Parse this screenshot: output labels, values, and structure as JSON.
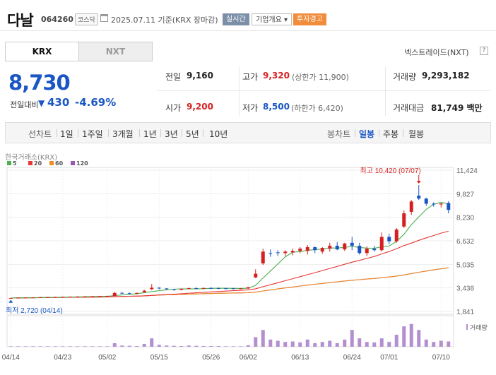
{
  "header": {
    "name": "다날",
    "code": "064260",
    "market": "코스닥",
    "date": "2025.07.11",
    "basis": "기준(KRX 장마감)",
    "realtime_label": "실시간",
    "overview_label": "기업개요",
    "overview_arrow": "▾",
    "warning_label": "투자경고"
  },
  "tabs": {
    "krx": "KRX",
    "nxt": "NXT"
  },
  "nxt_link": "넥스트레이드(NXT)",
  "help_icon": "?",
  "quote": {
    "price": "8,730",
    "change_label": "전일대비",
    "change_arrow": "▼",
    "change": "430",
    "change_pct": "-4.69%"
  },
  "stats": {
    "prev_label": "전일",
    "prev": "9,160",
    "high_label": "고가",
    "high": "9,320",
    "upper_limit": "(상한가 11,900)",
    "volume_label": "거래량",
    "volume": "9,293,182",
    "open_label": "시가",
    "open": "9,200",
    "low_label": "저가",
    "low": "8,500",
    "lower_limit": "(하한가 6,420)",
    "amount_label": "거래대금",
    "amount": "81,749 백만"
  },
  "colors": {
    "up": "#d62020",
    "down": "#1a56c4",
    "ma5": "#4caf50",
    "ma20": "#e53935",
    "ma60": "#f08c20",
    "ma120": "#9b59b6",
    "volume": "#b48fd0"
  },
  "periods": {
    "line_label": "선차트",
    "line": [
      "1일",
      "1주일",
      "3개월",
      "1년",
      "3년",
      "5년",
      "10년"
    ],
    "candle_label": "봉차트",
    "candle": [
      "일봉",
      "주봉",
      "월봉"
    ],
    "candle_selected": "일봉"
  },
  "chart_data": {
    "type": "candlestick",
    "source_label": "한국거래소(KRX)",
    "legend": [
      "5",
      "20",
      "60",
      "120"
    ],
    "y_ticks": [
      "11,424",
      "9,827",
      "8,230",
      "6,632",
      "5,035",
      "3,438",
      "1,841"
    ],
    "ylim": [
      1841,
      11424
    ],
    "x_ticks": [
      "04/14",
      "04/23",
      "05/02",
      "05/15",
      "05/26",
      "06/02",
      "06/13",
      "06/24",
      "07/01",
      "07/10"
    ],
    "high_annotation": "최고 10,420 (07/07)",
    "low_annotation": "최저 2,720 (04/14)",
    "volume_label": "거래량",
    "candles": [
      {
        "d": "04/14",
        "o": 2730,
        "h": 2760,
        "l": 2720,
        "c": 2750
      },
      {
        "d": "04/15",
        "o": 2750,
        "h": 2790,
        "l": 2740,
        "c": 2770
      },
      {
        "d": "04/16",
        "o": 2770,
        "h": 2800,
        "l": 2750,
        "c": 2780
      },
      {
        "d": "04/17",
        "o": 2780,
        "h": 2810,
        "l": 2760,
        "c": 2790
      },
      {
        "d": "04/18",
        "o": 2790,
        "h": 2820,
        "l": 2770,
        "c": 2800
      },
      {
        "d": "04/21",
        "o": 2800,
        "h": 2830,
        "l": 2780,
        "c": 2810
      },
      {
        "d": "04/22",
        "o": 2810,
        "h": 2840,
        "l": 2790,
        "c": 2820
      },
      {
        "d": "04/23",
        "o": 2820,
        "h": 2850,
        "l": 2800,
        "c": 2830
      },
      {
        "d": "04/24",
        "o": 2830,
        "h": 2860,
        "l": 2810,
        "c": 2840
      },
      {
        "d": "04/25",
        "o": 2840,
        "h": 2870,
        "l": 2820,
        "c": 2850
      },
      {
        "d": "04/28",
        "o": 2850,
        "h": 2880,
        "l": 2830,
        "c": 2860
      },
      {
        "d": "04/29",
        "o": 2860,
        "h": 2890,
        "l": 2840,
        "c": 2870
      },
      {
        "d": "04/30",
        "o": 2870,
        "h": 2900,
        "l": 2850,
        "c": 2880
      },
      {
        "d": "05/02",
        "o": 2880,
        "h": 2910,
        "l": 2860,
        "c": 2890
      },
      {
        "d": "05/07",
        "o": 2890,
        "h": 3150,
        "l": 2880,
        "c": 3100
      },
      {
        "d": "05/08",
        "o": 3100,
        "h": 3180,
        "l": 3050,
        "c": 3080
      },
      {
        "d": "05/09",
        "o": 3080,
        "h": 3130,
        "l": 3020,
        "c": 3050
      },
      {
        "d": "05/12",
        "o": 3050,
        "h": 3120,
        "l": 3000,
        "c": 3100
      },
      {
        "d": "05/13",
        "o": 3150,
        "h": 3300,
        "l": 3100,
        "c": 3250
      },
      {
        "d": "05/14",
        "o": 3350,
        "h": 3700,
        "l": 3300,
        "c": 3450
      },
      {
        "d": "05/15",
        "o": 3450,
        "h": 3480,
        "l": 3350,
        "c": 3400
      },
      {
        "d": "05/16",
        "o": 3400,
        "h": 3420,
        "l": 3300,
        "c": 3350
      },
      {
        "d": "05/19",
        "o": 3350,
        "h": 3380,
        "l": 3250,
        "c": 3300
      },
      {
        "d": "05/20",
        "o": 3300,
        "h": 3400,
        "l": 3280,
        "c": 3380
      },
      {
        "d": "05/21",
        "o": 3380,
        "h": 3450,
        "l": 3350,
        "c": 3420
      },
      {
        "d": "05/22",
        "o": 3420,
        "h": 3480,
        "l": 3380,
        "c": 3400
      },
      {
        "d": "05/23",
        "o": 3400,
        "h": 3460,
        "l": 3370,
        "c": 3430
      },
      {
        "d": "05/26",
        "o": 3430,
        "h": 3480,
        "l": 3380,
        "c": 3420
      },
      {
        "d": "05/27",
        "o": 3420,
        "h": 3460,
        "l": 3380,
        "c": 3410
      },
      {
        "d": "05/28",
        "o": 3410,
        "h": 3450,
        "l": 3370,
        "c": 3400
      },
      {
        "d": "05/29",
        "o": 3400,
        "h": 3440,
        "l": 3360,
        "c": 3390
      },
      {
        "d": "05/30",
        "o": 3390,
        "h": 3430,
        "l": 3350,
        "c": 3400
      },
      {
        "d": "06/02",
        "o": 3400,
        "h": 3500,
        "l": 3380,
        "c": 3480
      },
      {
        "d": "06/04",
        "o": 4150,
        "h": 4700,
        "l": 4100,
        "c": 4400
      },
      {
        "d": "06/05",
        "o": 5100,
        "h": 6100,
        "l": 5000,
        "c": 5900
      },
      {
        "d": "06/09",
        "o": 5800,
        "h": 6050,
        "l": 5550,
        "c": 5750
      },
      {
        "d": "06/10",
        "o": 5850,
        "h": 6000,
        "l": 5600,
        "c": 5800
      },
      {
        "d": "06/11",
        "o": 5800,
        "h": 6000,
        "l": 5600,
        "c": 5900
      },
      {
        "d": "06/12",
        "o": 5850,
        "h": 6100,
        "l": 5650,
        "c": 5950
      },
      {
        "d": "06/13",
        "o": 5950,
        "h": 6200,
        "l": 5800,
        "c": 6100
      },
      {
        "d": "06/16",
        "o": 5950,
        "h": 6350,
        "l": 5700,
        "c": 6200
      },
      {
        "d": "06/17",
        "o": 6200,
        "h": 6250,
        "l": 5800,
        "c": 6000
      },
      {
        "d": "06/18",
        "o": 5900,
        "h": 6200,
        "l": 5750,
        "c": 6150
      },
      {
        "d": "06/19",
        "o": 6100,
        "h": 6500,
        "l": 5900,
        "c": 6300
      },
      {
        "d": "06/20",
        "o": 6300,
        "h": 6550,
        "l": 6000,
        "c": 6050
      },
      {
        "d": "06/23",
        "o": 6050,
        "h": 6500,
        "l": 5950,
        "c": 6450
      },
      {
        "d": "06/24",
        "o": 6500,
        "h": 6900,
        "l": 6000,
        "c": 6300
      },
      {
        "d": "06/25",
        "o": 6300,
        "h": 6500,
        "l": 5700,
        "c": 5800
      },
      {
        "d": "06/26",
        "o": 5800,
        "h": 6250,
        "l": 5600,
        "c": 6100
      },
      {
        "d": "06/27",
        "o": 6100,
        "h": 6300,
        "l": 5900,
        "c": 6000
      },
      {
        "d": "06/30",
        "o": 6000,
        "h": 7200,
        "l": 5900,
        "c": 6900
      },
      {
        "d": "07/01",
        "o": 6900,
        "h": 7100,
        "l": 6400,
        "c": 6600
      },
      {
        "d": "07/02",
        "o": 6600,
        "h": 7500,
        "l": 6500,
        "c": 7400
      },
      {
        "d": "07/03",
        "o": 7600,
        "h": 8700,
        "l": 7500,
        "c": 8500
      },
      {
        "d": "07/04",
        "o": 8600,
        "h": 9400,
        "l": 8400,
        "c": 9300
      },
      {
        "d": "07/07",
        "o": 9700,
        "h": 10420,
        "l": 9400,
        "c": 9500
      },
      {
        "d": "07/08",
        "o": 9500,
        "h": 9550,
        "l": 9000,
        "c": 9150
      },
      {
        "d": "07/09",
        "o": 9150,
        "h": 9250,
        "l": 8950,
        "c": 9100
      },
      {
        "d": "07/10",
        "o": 9100,
        "h": 9200,
        "l": 8900,
        "c": 9160
      },
      {
        "d": "07/11",
        "o": 9200,
        "h": 9320,
        "l": 8500,
        "c": 8730
      }
    ],
    "volumes": [
      0.02,
      0.02,
      0.02,
      0.02,
      0.02,
      0.02,
      0.02,
      0.02,
      0.02,
      0.02,
      0.02,
      0.02,
      0.02,
      0.02,
      0.15,
      0.05,
      0.04,
      0.03,
      0.12,
      0.35,
      0.08,
      0.05,
      0.04,
      0.03,
      0.05,
      0.04,
      0.03,
      0.03,
      0.03,
      0.02,
      0.02,
      0.02,
      0.06,
      0.4,
      0.7,
      0.3,
      0.25,
      0.2,
      0.22,
      0.18,
      0.3,
      0.15,
      0.2,
      0.25,
      0.15,
      0.3,
      0.7,
      0.35,
      0.2,
      0.18,
      0.35,
      0.2,
      0.5,
      0.85,
      0.95,
      0.7,
      0.3,
      0.2,
      0.25,
      0.22
    ]
  }
}
